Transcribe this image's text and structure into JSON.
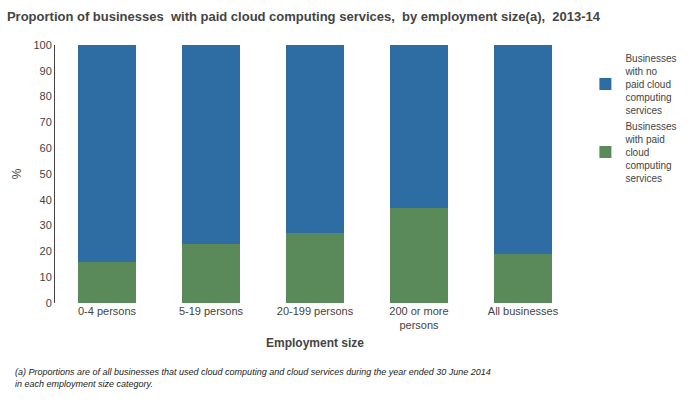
{
  "chart_data": {
    "type": "bar",
    "title": "Proportion of businesses  with paid cloud computing services,  by employment size(a),  2013-14",
    "xlabel": "Employment size",
    "ylabel": "%",
    "categories": [
      "0-4 persons",
      "5-19 persons",
      "20-199 persons",
      "200 or more\npersons",
      "All businesses"
    ],
    "series": [
      {
        "name": "Businesses\nwith paid\ncloud\ncomputing\nservices",
        "color": "#5a8a5a",
        "values": [
          16,
          23,
          27,
          37,
          19
        ]
      },
      {
        "name": "Businesses\nwith no\npaid cloud\ncomputing\nservices",
        "color": "#2e6da4",
        "values": [
          84,
          77,
          73,
          63,
          81
        ]
      }
    ],
    "stacked": true,
    "ylim": [
      0,
      100
    ],
    "yticks": [
      0,
      10,
      20,
      30,
      40,
      50,
      60,
      70,
      80,
      90,
      100
    ],
    "grid": false,
    "legend": "right",
    "annotations": [
      "(a) Proportions are of all businesses that used cloud computing and cloud services during the year ended 30 June 2014\nin each employment size category."
    ]
  }
}
